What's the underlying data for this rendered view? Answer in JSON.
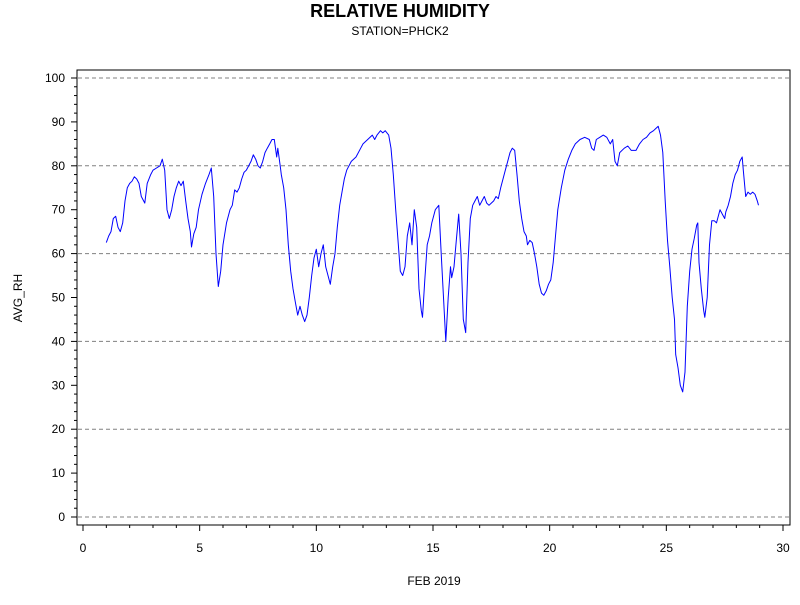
{
  "chart_data": {
    "type": "line",
    "title": "RELATIVE HUMIDITY",
    "subtitle": "STATION=PHCK2",
    "xlabel": "FEB 2019",
    "ylabel": "AVG_RH",
    "xlim": [
      0,
      30
    ],
    "ylim": [
      0,
      100
    ],
    "x_ticks": [
      0,
      5,
      10,
      15,
      20,
      25,
      30
    ],
    "x_tick_labels": [
      "0",
      "5",
      "10",
      "15",
      "20",
      "25",
      "30"
    ],
    "y_ticks": [
      0,
      10,
      20,
      30,
      40,
      50,
      60,
      70,
      80,
      90,
      100
    ],
    "y_tick_labels": [
      "0",
      "10",
      "20",
      "30",
      "40",
      "50",
      "60",
      "70",
      "80",
      "90",
      "100"
    ],
    "grid": {
      "horizontal": true,
      "style": "dashed",
      "lines_at": [
        0,
        20,
        40,
        60,
        80,
        100
      ]
    },
    "legend": "none",
    "colors": {
      "series": "#0000ff",
      "grid": "#808080",
      "axis": "#000000"
    },
    "series": [
      {
        "values_xy": [
          [
            1.0,
            62.5
          ],
          [
            1.1,
            64.0
          ],
          [
            1.2,
            65.0
          ],
          [
            1.3,
            68.0
          ],
          [
            1.4,
            68.5
          ],
          [
            1.5,
            66.0
          ],
          [
            1.6,
            65.0
          ],
          [
            1.7,
            67.0
          ],
          [
            1.8,
            72.0
          ],
          [
            1.9,
            75.0
          ],
          [
            2.0,
            76.0
          ],
          [
            2.1,
            76.5
          ],
          [
            2.2,
            77.5
          ],
          [
            2.3,
            77.0
          ],
          [
            2.4,
            76.0
          ],
          [
            2.5,
            73.0
          ],
          [
            2.65,
            71.5
          ],
          [
            2.75,
            76.0
          ],
          [
            2.9,
            78.0
          ],
          [
            3.0,
            79.0
          ],
          [
            3.15,
            79.5
          ],
          [
            3.3,
            80.0
          ],
          [
            3.4,
            81.5
          ],
          [
            3.5,
            79.0
          ],
          [
            3.6,
            70.0
          ],
          [
            3.7,
            68.0
          ],
          [
            3.8,
            70.0
          ],
          [
            3.9,
            73.0
          ],
          [
            4.0,
            75.0
          ],
          [
            4.1,
            76.5
          ],
          [
            4.2,
            75.5
          ],
          [
            4.3,
            76.5
          ],
          [
            4.4,
            72.0
          ],
          [
            4.5,
            68.0
          ],
          [
            4.6,
            65.0
          ],
          [
            4.65,
            61.5
          ],
          [
            4.75,
            64.5
          ],
          [
            4.85,
            66.0
          ],
          [
            4.95,
            70.0
          ],
          [
            5.1,
            73.5
          ],
          [
            5.25,
            76.0
          ],
          [
            5.4,
            78.0
          ],
          [
            5.5,
            79.5
          ],
          [
            5.6,
            73.0
          ],
          [
            5.7,
            60.0
          ],
          [
            5.8,
            52.5
          ],
          [
            5.9,
            56.0
          ],
          [
            6.0,
            62.0
          ],
          [
            6.15,
            67.0
          ],
          [
            6.3,
            70.0
          ],
          [
            6.4,
            71.0
          ],
          [
            6.5,
            74.5
          ],
          [
            6.6,
            74.0
          ],
          [
            6.7,
            75.0
          ],
          [
            6.8,
            77.0
          ],
          [
            6.9,
            78.5
          ],
          [
            7.0,
            79.0
          ],
          [
            7.1,
            80.0
          ],
          [
            7.2,
            81.0
          ],
          [
            7.3,
            82.5
          ],
          [
            7.4,
            81.5
          ],
          [
            7.5,
            80.0
          ],
          [
            7.6,
            79.5
          ],
          [
            7.7,
            81.0
          ],
          [
            7.8,
            83.0
          ],
          [
            7.9,
            84.0
          ],
          [
            8.0,
            85.0
          ],
          [
            8.1,
            86.0
          ],
          [
            8.2,
            86.0
          ],
          [
            8.3,
            82.0
          ],
          [
            8.35,
            84.0
          ],
          [
            8.45,
            80.0
          ],
          [
            8.5,
            78.0
          ],
          [
            8.6,
            75.0
          ],
          [
            8.7,
            70.0
          ],
          [
            8.8,
            62.0
          ],
          [
            8.9,
            56.0
          ],
          [
            9.0,
            52.0
          ],
          [
            9.1,
            49.0
          ],
          [
            9.2,
            46.0
          ],
          [
            9.3,
            48.0
          ],
          [
            9.4,
            46.0
          ],
          [
            9.5,
            44.5
          ],
          [
            9.6,
            46.0
          ],
          [
            9.7,
            50.0
          ],
          [
            9.8,
            55.0
          ],
          [
            9.9,
            59.0
          ],
          [
            10.0,
            61.0
          ],
          [
            10.1,
            57.0
          ],
          [
            10.2,
            60.0
          ],
          [
            10.3,
            62.0
          ],
          [
            10.4,
            57.0
          ],
          [
            10.5,
            55.0
          ],
          [
            10.6,
            53.0
          ],
          [
            10.7,
            57.0
          ],
          [
            10.8,
            60.0
          ],
          [
            10.9,
            66.0
          ],
          [
            11.0,
            71.0
          ],
          [
            11.1,
            74.0
          ],
          [
            11.2,
            77.0
          ],
          [
            11.3,
            79.0
          ],
          [
            11.5,
            81.0
          ],
          [
            11.7,
            82.0
          ],
          [
            11.9,
            84.0
          ],
          [
            12.0,
            85.0
          ],
          [
            12.2,
            86.0
          ],
          [
            12.4,
            87.0
          ],
          [
            12.5,
            86.0
          ],
          [
            12.6,
            87.0
          ],
          [
            12.75,
            88.0
          ],
          [
            12.85,
            87.5
          ],
          [
            12.95,
            88.0
          ],
          [
            13.1,
            87.0
          ],
          [
            13.2,
            84.0
          ],
          [
            13.3,
            78.0
          ],
          [
            13.4,
            70.0
          ],
          [
            13.5,
            63.0
          ],
          [
            13.6,
            56.0
          ],
          [
            13.7,
            55.0
          ],
          [
            13.8,
            57.0
          ],
          [
            13.9,
            64.0
          ],
          [
            14.0,
            67.0
          ],
          [
            14.1,
            62.0
          ],
          [
            14.2,
            70.0
          ],
          [
            14.3,
            66.0
          ],
          [
            14.4,
            52.0
          ],
          [
            14.5,
            47.0
          ],
          [
            14.55,
            45.5
          ],
          [
            14.65,
            54.0
          ],
          [
            14.75,
            62.0
          ],
          [
            14.85,
            64.0
          ],
          [
            14.95,
            67.0
          ],
          [
            15.1,
            70.0
          ],
          [
            15.25,
            71.0
          ],
          [
            15.35,
            60.0
          ],
          [
            15.45,
            50.0
          ],
          [
            15.55,
            40.0
          ],
          [
            15.65,
            50.0
          ],
          [
            15.75,
            57.0
          ],
          [
            15.8,
            54.5
          ],
          [
            15.9,
            57.0
          ],
          [
            16.0,
            63.0
          ],
          [
            16.1,
            69.0
          ],
          [
            16.2,
            60.0
          ],
          [
            16.3,
            45.0
          ],
          [
            16.4,
            42.0
          ],
          [
            16.5,
            58.0
          ],
          [
            16.6,
            68.0
          ],
          [
            16.7,
            71.0
          ],
          [
            16.8,
            72.0
          ],
          [
            16.9,
            73.0
          ],
          [
            17.0,
            71.0
          ],
          [
            17.1,
            72.0
          ],
          [
            17.2,
            73.0
          ],
          [
            17.3,
            71.5
          ],
          [
            17.4,
            71.0
          ],
          [
            17.5,
            71.5
          ],
          [
            17.6,
            72.0
          ],
          [
            17.7,
            73.0
          ],
          [
            17.8,
            72.5
          ],
          [
            17.9,
            75.0
          ],
          [
            18.0,
            77.0
          ],
          [
            18.1,
            79.0
          ],
          [
            18.2,
            81.0
          ],
          [
            18.3,
            83.0
          ],
          [
            18.4,
            84.0
          ],
          [
            18.5,
            83.5
          ],
          [
            18.6,
            78.0
          ],
          [
            18.7,
            72.0
          ],
          [
            18.8,
            68.0
          ],
          [
            18.9,
            65.0
          ],
          [
            19.0,
            64.0
          ],
          [
            19.05,
            62.0
          ],
          [
            19.15,
            63.0
          ],
          [
            19.25,
            62.5
          ],
          [
            19.35,
            60.0
          ],
          [
            19.45,
            57.0
          ],
          [
            19.55,
            53.0
          ],
          [
            19.65,
            51.0
          ],
          [
            19.75,
            50.5
          ],
          [
            19.85,
            51.5
          ],
          [
            19.95,
            53.0
          ],
          [
            20.05,
            54.0
          ],
          [
            20.15,
            58.0
          ],
          [
            20.25,
            64.0
          ],
          [
            20.35,
            70.0
          ],
          [
            20.5,
            75.0
          ],
          [
            20.65,
            79.0
          ],
          [
            20.8,
            81.5
          ],
          [
            20.95,
            83.5
          ],
          [
            21.1,
            85.0
          ],
          [
            21.3,
            86.0
          ],
          [
            21.5,
            86.5
          ],
          [
            21.7,
            86.0
          ],
          [
            21.8,
            84.0
          ],
          [
            21.9,
            83.5
          ],
          [
            22.0,
            86.0
          ],
          [
            22.15,
            86.5
          ],
          [
            22.3,
            87.0
          ],
          [
            22.45,
            86.5
          ],
          [
            22.6,
            85.0
          ],
          [
            22.7,
            86.0
          ],
          [
            22.8,
            81.0
          ],
          [
            22.9,
            80.0
          ],
          [
            23.0,
            83.0
          ],
          [
            23.2,
            84.0
          ],
          [
            23.35,
            84.5
          ],
          [
            23.5,
            83.5
          ],
          [
            23.7,
            83.5
          ],
          [
            23.85,
            85.0
          ],
          [
            24.0,
            86.0
          ],
          [
            24.15,
            86.5
          ],
          [
            24.3,
            87.5
          ],
          [
            24.45,
            88.0
          ],
          [
            24.55,
            88.5
          ],
          [
            24.65,
            89.0
          ],
          [
            24.75,
            87.0
          ],
          [
            24.85,
            83.0
          ],
          [
            24.95,
            72.0
          ],
          [
            25.05,
            63.0
          ],
          [
            25.15,
            57.0
          ],
          [
            25.25,
            50.0
          ],
          [
            25.35,
            45.0
          ],
          [
            25.4,
            37.0
          ],
          [
            25.5,
            34.0
          ],
          [
            25.6,
            30.0
          ],
          [
            25.7,
            28.5
          ],
          [
            25.8,
            33.0
          ],
          [
            25.9,
            48.0
          ],
          [
            26.0,
            56.0
          ],
          [
            26.1,
            61.0
          ],
          [
            26.2,
            63.5
          ],
          [
            26.3,
            66.5
          ],
          [
            26.35,
            67.0
          ],
          [
            26.4,
            58.0
          ],
          [
            26.5,
            52.0
          ],
          [
            26.6,
            47.0
          ],
          [
            26.65,
            45.5
          ],
          [
            26.75,
            50.0
          ],
          [
            26.85,
            62.0
          ],
          [
            26.95,
            67.5
          ],
          [
            27.05,
            67.5
          ],
          [
            27.15,
            67.0
          ],
          [
            27.3,
            70.0
          ],
          [
            27.4,
            69.0
          ],
          [
            27.5,
            68.0
          ],
          [
            27.55,
            69.5
          ],
          [
            27.65,
            71.0
          ],
          [
            27.75,
            73.0
          ],
          [
            27.85,
            76.0
          ],
          [
            27.95,
            78.0
          ],
          [
            28.05,
            79.0
          ],
          [
            28.15,
            81.0
          ],
          [
            28.25,
            82.0
          ],
          [
            28.3,
            79.0
          ],
          [
            28.4,
            73.0
          ],
          [
            28.5,
            74.0
          ],
          [
            28.6,
            73.5
          ],
          [
            28.7,
            74.0
          ],
          [
            28.8,
            73.5
          ],
          [
            28.9,
            72.0
          ],
          [
            28.95,
            71.0
          ]
        ]
      }
    ]
  }
}
